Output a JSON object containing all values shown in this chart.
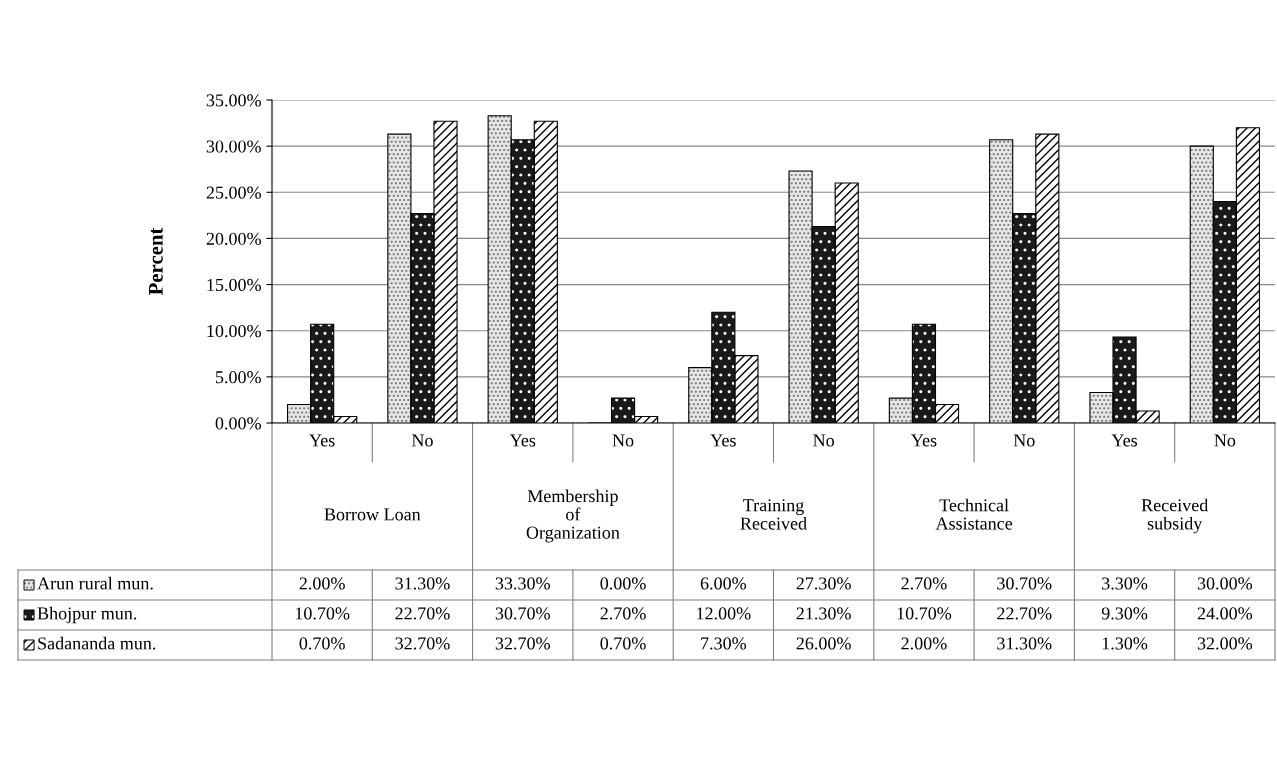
{
  "chart_data": {
    "type": "bar",
    "ylabel": "Percent",
    "categories": [
      "Yes",
      "No",
      "Yes",
      "No",
      "Yes",
      "No",
      "Yes",
      "No",
      "Yes",
      "No"
    ],
    "annotations": [
      "Borrow Loan",
      "Membership\nof\nOrganization",
      "Training\nReceived",
      "Technical\nAssistance",
      "Received\nsubsidy"
    ],
    "series": [
      {
        "name": "Arun rural mun.",
        "color": "#e6e6e6",
        "values": [
          2.0,
          31.3,
          33.3,
          0.0,
          6.0,
          27.3,
          2.7,
          30.7,
          3.3,
          30.0
        ],
        "value_labels": [
          "2.00%",
          "31.30%",
          "33.30%",
          "0.00%",
          "6.00%",
          "27.30%",
          "2.70%",
          "30.70%",
          "3.30%",
          "30.00%"
        ]
      },
      {
        "name": "Bhojpur mun.",
        "color": "#1a1a1a",
        "values": [
          10.7,
          22.7,
          30.7,
          2.7,
          12.0,
          21.3,
          10.7,
          22.7,
          9.3,
          24.0
        ],
        "value_labels": [
          "10.70%",
          "22.70%",
          "30.70%",
          "2.70%",
          "12.00%",
          "21.30%",
          "10.70%",
          "22.70%",
          "9.30%",
          "24.00%"
        ]
      },
      {
        "name": "Sadananda mun.",
        "color": "#ffffff",
        "values": [
          0.7,
          32.7,
          32.7,
          0.7,
          7.3,
          26.0,
          2.0,
          31.3,
          1.3,
          32.0
        ],
        "value_labels": [
          "0.70%",
          "32.70%",
          "32.70%",
          "0.70%",
          "7.30%",
          "26.00%",
          "2.00%",
          "31.30%",
          "1.30%",
          "32.00%"
        ]
      }
    ],
    "ylim": [
      0,
      35
    ],
    "yticks": [
      {
        "value": 0,
        "label": "0.00%"
      },
      {
        "value": 5,
        "label": "5.00%"
      },
      {
        "value": 10,
        "label": "10.00%"
      },
      {
        "value": 15,
        "label": "15.00%"
      },
      {
        "value": 20,
        "label": "20.00%"
      },
      {
        "value": 25,
        "label": "25.00%"
      },
      {
        "value": 30,
        "label": "30.00%"
      },
      {
        "value": 35,
        "label": "35.00%"
      }
    ],
    "grid": "y",
    "legend": "bottom left"
  }
}
